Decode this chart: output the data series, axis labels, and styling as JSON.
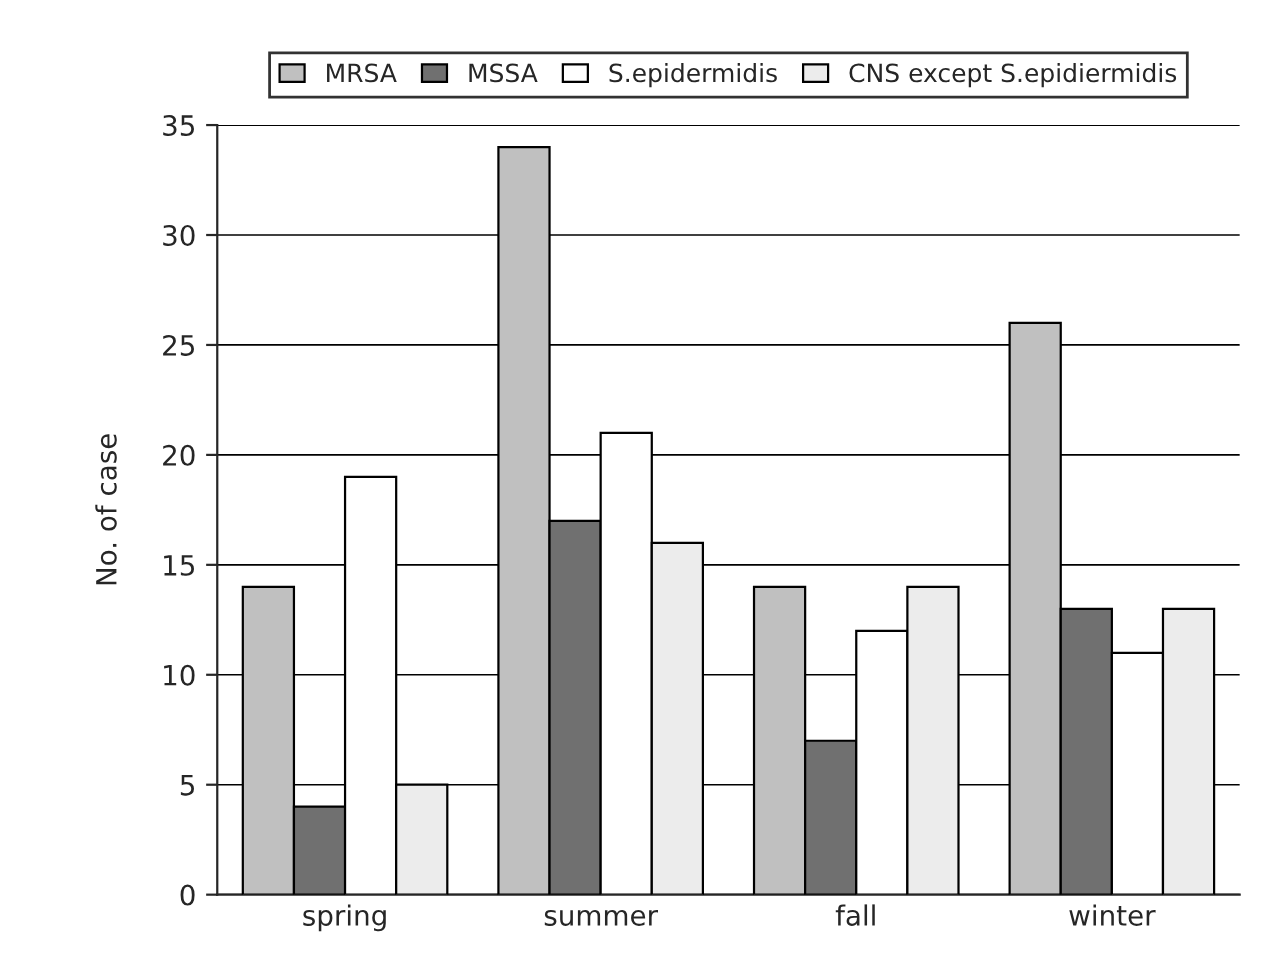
{
  "chart_data": {
    "type": "bar",
    "ylabel": "No. of case",
    "categories": [
      "spring",
      "summer",
      "fall",
      "winter"
    ],
    "series": [
      {
        "name": "MRSA",
        "color": "#c0c0c0",
        "values": [
          14,
          34,
          14,
          26
        ]
      },
      {
        "name": "MSSA",
        "color": "#707070",
        "values": [
          4,
          17,
          7,
          13
        ]
      },
      {
        "name": "S.epidermidis",
        "color": "#ffffff",
        "values": [
          19,
          21,
          12,
          11
        ]
      },
      {
        "name": "CNS except S.epidiermidis",
        "color": "#ececec",
        "values": [
          5,
          16,
          14,
          13
        ]
      }
    ],
    "ylim": [
      0,
      35
    ],
    "yticks": [
      0,
      5,
      10,
      15,
      20,
      25,
      30,
      35
    ],
    "grid": "y",
    "legend": "top"
  }
}
